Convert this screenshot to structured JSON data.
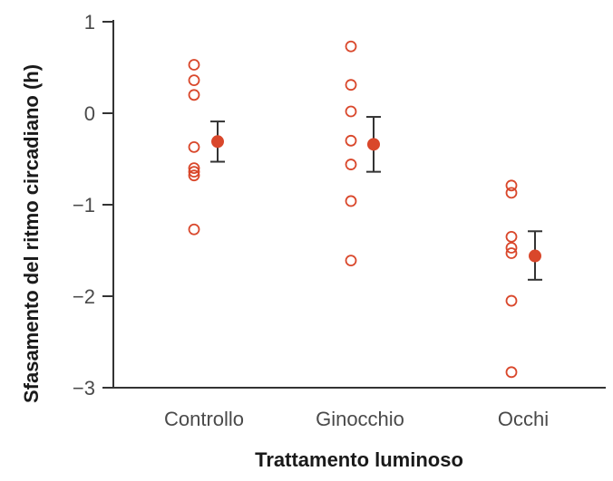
{
  "chart_data": {
    "type": "scatter",
    "title": "",
    "xlabel": "Trattamento luminoso",
    "ylabel": "Sfasamento del ritmo circadiano (h)",
    "ylim": [
      -3,
      1
    ],
    "yticks": [
      1,
      0,
      -1,
      -2,
      -3
    ],
    "ytick_labels": [
      "1",
      "0",
      "−1",
      "−2",
      "−3"
    ],
    "categories": [
      "Controllo",
      "Ginocchio",
      "Occhi"
    ],
    "grid": false,
    "legend": "none",
    "colors": {
      "points": "#d9472b",
      "error_bars": "#333333",
      "axes": "#333333"
    },
    "groups": [
      {
        "category": "Controllo",
        "individual_values": [
          0.53,
          0.36,
          0.2,
          -0.37,
          -0.6,
          -0.64,
          -0.68,
          -1.27
        ],
        "mean": -0.31,
        "error_low": -0.53,
        "error_high": -0.09
      },
      {
        "category": "Ginocchio",
        "individual_values": [
          0.73,
          0.31,
          0.02,
          -0.3,
          -0.56,
          -0.96,
          -1.61
        ],
        "mean": -0.34,
        "error_low": -0.64,
        "error_high": -0.04
      },
      {
        "category": "Occhi",
        "individual_values": [
          -0.79,
          -0.87,
          -1.35,
          -1.47,
          -1.53,
          -2.05,
          -2.83
        ],
        "mean": -1.56,
        "error_low": -1.82,
        "error_high": -1.29
      }
    ]
  }
}
